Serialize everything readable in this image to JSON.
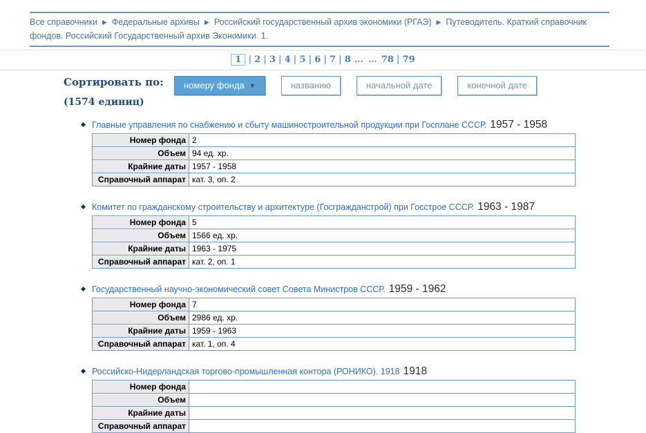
{
  "breadcrumb": {
    "separator": "▶",
    "items": [
      "Все справочники",
      "Федеральные архивы",
      "Российский государственный архив экономики (РГАЭ)",
      "Путеводитель. Краткий справочник фондов. Российский Государственный архив Экономики. 1."
    ]
  },
  "pagination": {
    "current": "1",
    "entries": [
      "1",
      "|",
      "2",
      "|",
      "3",
      "|",
      "4",
      "|",
      "5",
      "|",
      "6",
      "|",
      "7",
      "|",
      "8",
      "…",
      "…",
      "78",
      "|",
      "79"
    ]
  },
  "sort": {
    "label": "Сортировать по:",
    "count": "(1574 единиц)",
    "buttons": [
      {
        "label": "номеру фонда",
        "active": true,
        "arrow": "▼"
      },
      {
        "label": "названию",
        "active": false
      },
      {
        "label": "начальной дате",
        "active": false
      },
      {
        "label": "конечной дате",
        "active": false
      }
    ]
  },
  "items": [
    {
      "title": "Главные управления по снабжению и сбыту машиностроительной продукции при Госплане СССР.",
      "years": "1957 - 1958",
      "fields": [
        [
          "Номер фонда",
          "2"
        ],
        [
          "Объем",
          "94 ед. хр."
        ],
        [
          "Крайние даты",
          "1957 - 1958"
        ],
        [
          "Справочный аппарат",
          "кат. 3, оп. 2"
        ]
      ]
    },
    {
      "title": "Комитет по гражданскому строительству и архитектуре (Госгражданстрой) при Госстрое СССР.",
      "years": "1963 - 1987",
      "fields": [
        [
          "Номер фонда",
          "5"
        ],
        [
          "Объем",
          "1566 ед. хр."
        ],
        [
          "Крайние даты",
          "1963 - 1975"
        ],
        [
          "Справочный аппарат",
          "кат. 2, оп. 1"
        ]
      ]
    },
    {
      "title": "Государственный научно-экономический совет Совета Министров СССР.",
      "years": "1959 - 1962",
      "fields": [
        [
          "Номер фонда",
          "7"
        ],
        [
          "Объем",
          "2986 ед. хр."
        ],
        [
          "Крайние даты",
          "1959 - 1963"
        ],
        [
          "Справочный аппарат",
          "кат. 1, оп. 4"
        ]
      ]
    },
    {
      "title": "Российско-Нидерландская торгово-промышленная контора (РОНИКО). 1918",
      "years": "1918",
      "fields": [
        [
          "Номер фонда",
          ""
        ],
        [
          "Объем",
          ""
        ],
        [
          "Крайние даты",
          ""
        ],
        [
          "Справочный аппарат",
          ""
        ]
      ]
    }
  ],
  "colors": {
    "rule_blue": "#6b96c4",
    "rule_gray": "#e2e2e2",
    "link_blue": "#2d6fc1",
    "breadcrumb_blue": "#46749f",
    "pagination_blue": "#4a7fb8",
    "sort_label_navy": "#1d4e7a",
    "active_button_bg": "#5ba1d3",
    "table_border": "#6d9ac8",
    "label_cell_bg": "#e9e9ed"
  }
}
